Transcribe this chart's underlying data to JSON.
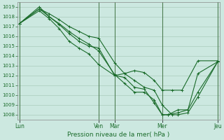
{
  "title": "Pression niveau de la mer( hPa )",
  "bg_color": "#cce8e0",
  "grid_color": "#aaccbb",
  "line_color": "#1a6b2a",
  "vline_color": "#336633",
  "ylim": [
    1007.5,
    1019.5
  ],
  "yticks": [
    1008,
    1009,
    1010,
    1011,
    1012,
    1013,
    1014,
    1015,
    1016,
    1017,
    1018,
    1019
  ],
  "xtick_labels": [
    "Lun",
    "Ven",
    "Mar",
    "Mer",
    "Jeu"
  ],
  "xtick_positions": [
    0.0,
    4.0,
    4.8,
    7.2,
    10.0
  ],
  "xlim": [
    -0.1,
    10.1
  ],
  "series": [
    [
      0.0,
      1017.3,
      1.0,
      1019.0,
      1.5,
      1018.0,
      2.0,
      1017.2,
      2.5,
      1016.3,
      3.0,
      1015.5,
      3.5,
      1015.0,
      4.0,
      1014.8,
      4.8,
      1012.0,
      5.3,
      1012.2,
      5.8,
      1012.5,
      6.3,
      1012.3,
      6.8,
      1011.5,
      7.2,
      1010.5,
      7.7,
      1010.5,
      8.2,
      1010.5,
      9.0,
      1013.5,
      10.0,
      1013.5
    ],
    [
      0.0,
      1017.3,
      1.0,
      1018.8,
      1.5,
      1018.3,
      2.0,
      1017.7,
      2.5,
      1017.0,
      3.0,
      1016.5,
      3.5,
      1016.0,
      4.0,
      1015.8,
      4.8,
      1013.3,
      5.3,
      1012.2,
      5.8,
      1011.5,
      6.3,
      1010.8,
      6.8,
      1010.5,
      7.2,
      1009.0,
      7.7,
      1008.0,
      8.0,
      1008.0,
      8.5,
      1008.2,
      9.0,
      1009.8,
      10.0,
      1013.4
    ],
    [
      0.0,
      1017.3,
      1.0,
      1018.6,
      1.5,
      1017.8,
      2.0,
      1016.8,
      2.5,
      1015.5,
      3.0,
      1014.8,
      3.5,
      1014.2,
      4.0,
      1013.1,
      4.8,
      1012.0,
      5.3,
      1011.8,
      5.8,
      1010.8,
      6.3,
      1010.6,
      6.8,
      1009.2,
      7.2,
      1008.0,
      7.5,
      1008.0,
      8.0,
      1008.2,
      8.5,
      1008.5,
      9.0,
      1010.3,
      10.0,
      1013.4
    ],
    [
      0.0,
      1017.3,
      1.0,
      1018.8,
      1.5,
      1018.0,
      2.0,
      1017.3,
      2.5,
      1016.5,
      3.0,
      1015.8,
      3.5,
      1015.2,
      4.0,
      1014.5,
      4.8,
      1012.1,
      5.3,
      1011.2,
      5.8,
      1010.3,
      6.3,
      1010.3,
      6.8,
      1009.5,
      7.2,
      1008.0,
      7.5,
      1008.0,
      8.0,
      1008.5,
      8.5,
      1008.5,
      9.0,
      1012.2,
      10.0,
      1013.4
    ]
  ],
  "vline_positions": [
    0.0,
    4.0,
    4.8,
    7.2,
    10.0
  ]
}
